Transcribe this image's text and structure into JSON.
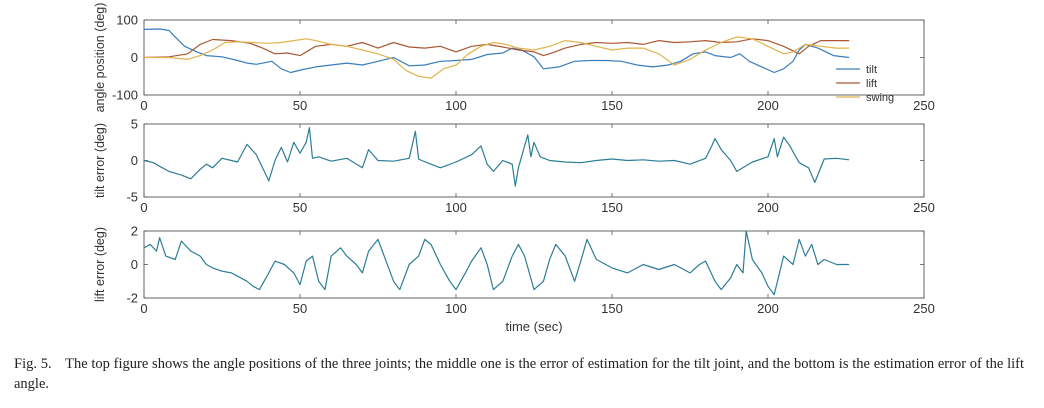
{
  "chart_data": [
    {
      "type": "line",
      "ylabel": "angle position (deg)",
      "xlabel": "",
      "xlim": [
        0,
        250
      ],
      "ylim": [
        -100,
        100
      ],
      "xticks": [
        0,
        50,
        100,
        150,
        200,
        250
      ],
      "yticks": [
        -100,
        0,
        100
      ],
      "legend_position": "bottom-right",
      "series": [
        {
          "name": "tilt",
          "color": "#3a7dbd",
          "x": [
            0,
            5,
            8,
            10,
            13,
            17,
            20,
            25,
            30,
            33,
            36,
            41,
            44,
            47,
            51,
            55,
            60,
            65,
            70,
            75,
            80,
            85,
            90,
            95,
            100,
            105,
            110,
            115,
            118,
            121,
            125,
            128,
            133,
            138,
            143,
            148,
            153,
            158,
            163,
            168,
            172,
            176,
            180,
            183,
            188,
            191,
            194,
            198,
            202,
            205,
            208,
            210,
            212,
            216,
            221,
            226
          ],
          "y": [
            75,
            76,
            72,
            55,
            30,
            15,
            5,
            2,
            -8,
            -15,
            -18,
            -10,
            -30,
            -40,
            -32,
            -25,
            -20,
            -15,
            -20,
            -10,
            0,
            -22,
            -20,
            -10,
            -8,
            -5,
            8,
            12,
            25,
            20,
            2,
            -30,
            -25,
            -10,
            -8,
            -8,
            -10,
            -20,
            -25,
            -20,
            -10,
            10,
            15,
            5,
            0,
            10,
            -10,
            -25,
            -40,
            -30,
            -10,
            20,
            35,
            25,
            5,
            0
          ]
        },
        {
          "name": "lift",
          "color": "#a95a33",
          "x": [
            0,
            8,
            14,
            18,
            22,
            28,
            34,
            38,
            42,
            46,
            50,
            55,
            60,
            65,
            70,
            75,
            80,
            85,
            90,
            95,
            100,
            105,
            110,
            115,
            120,
            125,
            128,
            130,
            135,
            140,
            145,
            150,
            155,
            160,
            165,
            170,
            175,
            180,
            185,
            190,
            195,
            200,
            205,
            210,
            213,
            217,
            222,
            226
          ],
          "y": [
            0,
            2,
            10,
            35,
            48,
            45,
            38,
            25,
            10,
            12,
            5,
            30,
            35,
            30,
            40,
            25,
            40,
            28,
            25,
            30,
            15,
            30,
            35,
            28,
            20,
            15,
            5,
            10,
            25,
            35,
            40,
            38,
            40,
            35,
            45,
            40,
            42,
            45,
            40,
            42,
            50,
            45,
            30,
            10,
            30,
            45,
            45,
            45
          ]
        },
        {
          "name": "swing",
          "color": "#e0b44c",
          "x": [
            0,
            8,
            14,
            18,
            22,
            26,
            30,
            35,
            40,
            44,
            48,
            52,
            55,
            60,
            65,
            70,
            75,
            80,
            84,
            88,
            92,
            96,
            100,
            104,
            108,
            112,
            116,
            120,
            125,
            130,
            135,
            140,
            145,
            150,
            155,
            160,
            165,
            170,
            175,
            180,
            185,
            190,
            195,
            200,
            205,
            208,
            212,
            217,
            222,
            226
          ],
          "y": [
            0,
            0,
            -5,
            5,
            20,
            40,
            42,
            40,
            38,
            40,
            45,
            50,
            45,
            35,
            30,
            20,
            10,
            -5,
            -35,
            -50,
            -55,
            -30,
            -20,
            10,
            30,
            40,
            35,
            25,
            20,
            30,
            45,
            40,
            30,
            20,
            25,
            25,
            10,
            -20,
            -5,
            20,
            40,
            55,
            50,
            30,
            10,
            15,
            35,
            30,
            25,
            25
          ]
        }
      ]
    },
    {
      "type": "line",
      "ylabel": "tilt error (deg)",
      "xlabel": "",
      "xlim": [
        0,
        250
      ],
      "ylim": [
        -5,
        5
      ],
      "xticks": [
        0,
        50,
        100,
        150,
        200,
        250
      ],
      "yticks": [
        -5,
        0,
        5
      ],
      "series": [
        {
          "color": "#2c7d96",
          "x": [
            0,
            3,
            5,
            8,
            12,
            15,
            18,
            20,
            22,
            25,
            28,
            30,
            33,
            36,
            38,
            40,
            42,
            44,
            46,
            48,
            50,
            52,
            53,
            54,
            56,
            60,
            65,
            70,
            72,
            75,
            80,
            85,
            87,
            88,
            89,
            92,
            95,
            100,
            105,
            108,
            110,
            112,
            115,
            118,
            119,
            120,
            122,
            123,
            124,
            125,
            127,
            130,
            135,
            140,
            145,
            150,
            155,
            160,
            165,
            170,
            175,
            180,
            182,
            183,
            185,
            188,
            190,
            195,
            200,
            202,
            203,
            205,
            207,
            210,
            213,
            215,
            218,
            222,
            226
          ],
          "y": [
            0,
            -0.3,
            -0.8,
            -1.5,
            -2,
            -2.5,
            -1.2,
            -0.5,
            -1,
            0.3,
            0,
            -0.2,
            2.2,
            0.8,
            -1,
            -2.8,
            0,
            1.8,
            -0.2,
            2.5,
            1,
            2.5,
            4.5,
            0.3,
            0.5,
            -0.1,
            0.3,
            -1,
            1.5,
            0,
            -0.1,
            0.3,
            4,
            0.2,
            0,
            -0.5,
            -1,
            -0.2,
            0.8,
            2,
            -0.5,
            -1.5,
            0,
            -0.5,
            -3.5,
            -1,
            2,
            3.5,
            0.5,
            2.5,
            0.5,
            0,
            -0.2,
            -0.3,
            0,
            0.2,
            0,
            0.1,
            -0.1,
            0,
            -0.5,
            0.3,
            2,
            3,
            1.5,
            0,
            -1.5,
            -0.2,
            0.5,
            3,
            0.5,
            3.2,
            2,
            -0.3,
            -1,
            -3,
            0.2,
            0.3,
            0.1
          ]
        }
      ]
    },
    {
      "type": "line",
      "ylabel": "lift error (deg)",
      "xlabel": "time (sec)",
      "xlim": [
        0,
        250
      ],
      "ylim": [
        -2,
        2
      ],
      "xticks": [
        0,
        50,
        100,
        150,
        200,
        250
      ],
      "yticks": [
        -2,
        0,
        2
      ],
      "series": [
        {
          "color": "#2c7d96",
          "x": [
            0,
            2,
            4,
            5,
            7,
            10,
            12,
            15,
            18,
            20,
            22,
            25,
            28,
            30,
            33,
            35,
            37,
            40,
            42,
            45,
            48,
            50,
            52,
            54,
            56,
            58,
            60,
            63,
            65,
            68,
            70,
            72,
            75,
            77,
            80,
            82,
            85,
            88,
            90,
            92,
            95,
            98,
            100,
            103,
            105,
            108,
            110,
            112,
            115,
            118,
            120,
            122,
            125,
            128,
            130,
            132,
            135,
            138,
            140,
            142,
            145,
            150,
            155,
            160,
            165,
            170,
            175,
            178,
            180,
            183,
            185,
            188,
            190,
            192,
            193,
            195,
            198,
            200,
            202,
            205,
            208,
            210,
            212,
            214,
            216,
            218,
            222,
            226
          ],
          "y": [
            1,
            1.2,
            0.8,
            1.6,
            0.5,
            0.3,
            1.4,
            0.8,
            0.5,
            0,
            -0.2,
            -0.4,
            -0.5,
            -0.7,
            -1,
            -1.3,
            -1.5,
            -0.5,
            0.2,
            0,
            -0.5,
            -1.2,
            0.2,
            0.5,
            -1,
            -1.5,
            0.5,
            1,
            0.5,
            0,
            -0.5,
            0.8,
            1.5,
            0.5,
            -1,
            -1.5,
            0,
            0.5,
            1.5,
            1.2,
            0,
            -1,
            -1.5,
            -0.5,
            0.2,
            1,
            0,
            -1.5,
            -1,
            0.5,
            1.2,
            0.5,
            -1.5,
            -1,
            0.3,
            1.2,
            0.5,
            -1,
            0.2,
            1.5,
            0.3,
            -0.2,
            -0.5,
            0,
            -0.3,
            0,
            -0.5,
            0,
            0.2,
            -1,
            -1.5,
            -0.8,
            0,
            -0.5,
            2,
            0.3,
            -0.5,
            -1.3,
            -1.8,
            0.5,
            0,
            1.5,
            0.5,
            1.2,
            0,
            0.3,
            0,
            0
          ]
        }
      ]
    }
  ],
  "caption": {
    "lead": "Fig. 5.",
    "text": "The top figure shows the angle positions of the three joints; the middle one is the error of estimation for the tilt joint, and the bottom is the estimation error of the lift angle."
  }
}
